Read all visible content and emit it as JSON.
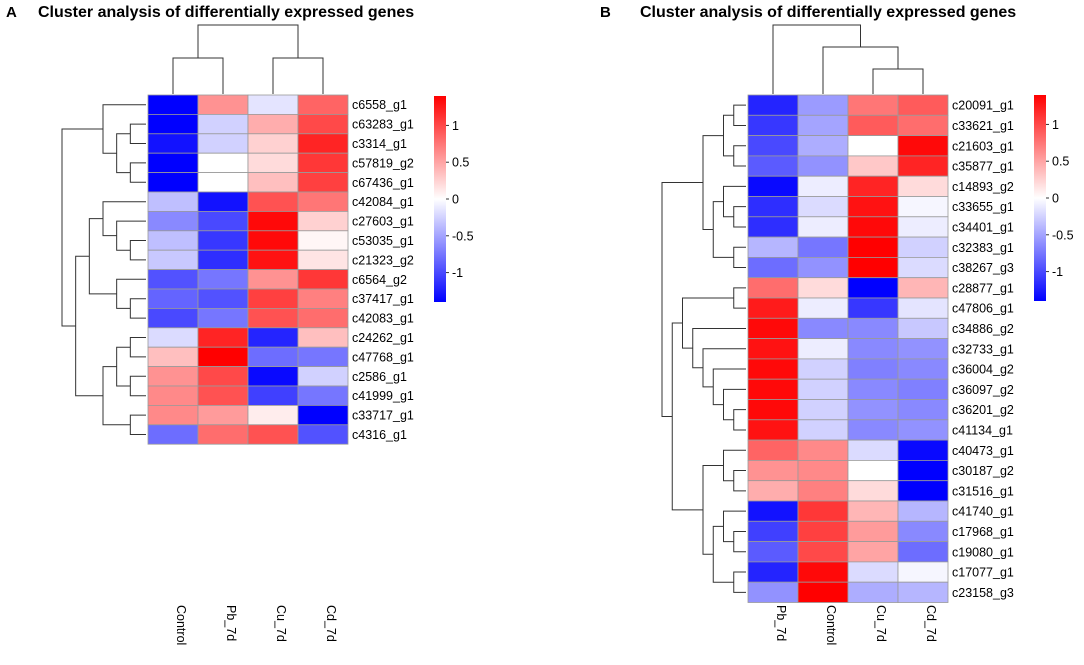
{
  "chart_data": [
    {
      "panel": "A",
      "type": "heatmap",
      "title": "Cluster analysis of differentially expressed genes",
      "columns": [
        "Control",
        "Pb_7d",
        "Cu_7d",
        "Cd_7d"
      ],
      "rows": [
        "c6558_g1",
        "c63283_g1",
        "c3314_g1",
        "c57819_g2",
        "c67436_g1",
        "c42084_g1",
        "c27603_g1",
        "c53035_g1",
        "c21323_g2",
        "c6564_g2",
        "c37417_g1",
        "c42083_g1",
        "c24262_g1",
        "c47768_g1",
        "c2586_g1",
        "c41999_g1",
        "c33717_g1",
        "c4316_g1"
      ],
      "values": [
        [
          -1.4,
          0.6,
          -0.15,
          0.85
        ],
        [
          -1.4,
          -0.25,
          0.45,
          1.0
        ],
        [
          -1.3,
          -0.25,
          0.25,
          1.2
        ],
        [
          -1.4,
          0.0,
          0.2,
          1.1
        ],
        [
          -1.4,
          0.0,
          0.35,
          1.05
        ],
        [
          -0.35,
          -1.3,
          0.95,
          0.75
        ],
        [
          -0.65,
          -1.0,
          1.35,
          0.25
        ],
        [
          -0.35,
          -1.1,
          1.35,
          0.05
        ],
        [
          -0.3,
          -1.15,
          1.3,
          0.15
        ],
        [
          -0.95,
          -0.75,
          0.6,
          1.1
        ],
        [
          -0.85,
          -0.95,
          1.05,
          0.7
        ],
        [
          -1.0,
          -0.75,
          0.95,
          0.8
        ],
        [
          -0.2,
          1.2,
          -1.2,
          0.35
        ],
        [
          0.35,
          1.4,
          -0.8,
          -0.75
        ],
        [
          0.6,
          1.0,
          -1.35,
          -0.25
        ],
        [
          0.65,
          0.95,
          -1.05,
          -0.75
        ],
        [
          0.65,
          0.55,
          0.1,
          -1.4
        ],
        [
          -0.8,
          0.8,
          0.95,
          -0.95
        ]
      ],
      "legend": {
        "ticks": [
          "1",
          "0.5",
          "0",
          "-0.5",
          "-1"
        ],
        "tick_values": [
          1,
          0.5,
          0,
          -0.5,
          -1
        ],
        "range": [
          -1.4,
          1.4
        ],
        "colors": {
          "low": "#0000ff",
          "mid": "#ffffff",
          "high": "#ff0000"
        }
      }
    },
    {
      "panel": "B",
      "type": "heatmap",
      "title": "Cluster analysis of differentially expressed genes",
      "columns": [
        "Pb_7d",
        "Control",
        "Cu_7d",
        "Cd_7d"
      ],
      "rows": [
        "c20091_g1",
        "c33621_g1",
        "c21603_g1",
        "c35877_g1",
        "c14893_g2",
        "c33655_g1",
        "c34401_g1",
        "c32383_g1",
        "c38267_g3",
        "c28877_g1",
        "c47806_g1",
        "c34886_g2",
        "c32733_g1",
        "c36004_g2",
        "c36097_g2",
        "c36201_g2",
        "c41134_g1",
        "c40473_g1",
        "c30187_g2",
        "c31516_g1",
        "c41740_g1",
        "c17968_g1",
        "c19080_g1",
        "c17077_g1",
        "c23158_g3"
      ],
      "values": [
        [
          -1.2,
          -0.55,
          0.75,
          0.9
        ],
        [
          -1.1,
          -0.5,
          0.9,
          0.8
        ],
        [
          -1.0,
          -0.45,
          0.0,
          1.35
        ],
        [
          -0.9,
          -0.6,
          0.3,
          1.2
        ],
        [
          -1.35,
          -0.1,
          1.2,
          0.2
        ],
        [
          -1.15,
          -0.2,
          1.3,
          -0.05
        ],
        [
          -1.15,
          -0.1,
          1.35,
          -0.1
        ],
        [
          -0.4,
          -0.75,
          1.4,
          -0.25
        ],
        [
          -0.8,
          -0.6,
          1.4,
          -0.2
        ],
        [
          0.8,
          0.2,
          -1.4,
          0.4
        ],
        [
          1.25,
          -0.1,
          -1.1,
          -0.15
        ],
        [
          1.35,
          -0.65,
          -0.65,
          -0.3
        ],
        [
          1.3,
          -0.1,
          -0.65,
          -0.6
        ],
        [
          1.35,
          -0.25,
          -0.7,
          -0.65
        ],
        [
          1.35,
          -0.25,
          -0.65,
          -0.7
        ],
        [
          1.35,
          -0.25,
          -0.6,
          -0.65
        ],
        [
          1.3,
          -0.25,
          -0.65,
          -0.6
        ],
        [
          0.85,
          0.65,
          -0.2,
          -1.35
        ],
        [
          0.6,
          0.65,
          0.0,
          -1.45
        ],
        [
          0.45,
          0.7,
          0.2,
          -1.45
        ],
        [
          -1.3,
          1.1,
          0.4,
          -0.4
        ],
        [
          -1.05,
          1.05,
          0.55,
          -0.65
        ],
        [
          -0.9,
          1.0,
          0.5,
          -0.8
        ],
        [
          -1.2,
          1.35,
          -0.2,
          -0.05
        ],
        [
          -0.6,
          1.4,
          -0.45,
          -0.4
        ]
      ],
      "legend": {
        "ticks": [
          "1",
          "0.5",
          "0",
          "-0.5",
          "-1"
        ],
        "tick_values": [
          1,
          0.5,
          0,
          -0.5,
          -1
        ],
        "range": [
          -1.4,
          1.4
        ],
        "colors": {
          "low": "#0000ff",
          "mid": "#ffffff",
          "high": "#ff0000"
        }
      }
    }
  ]
}
